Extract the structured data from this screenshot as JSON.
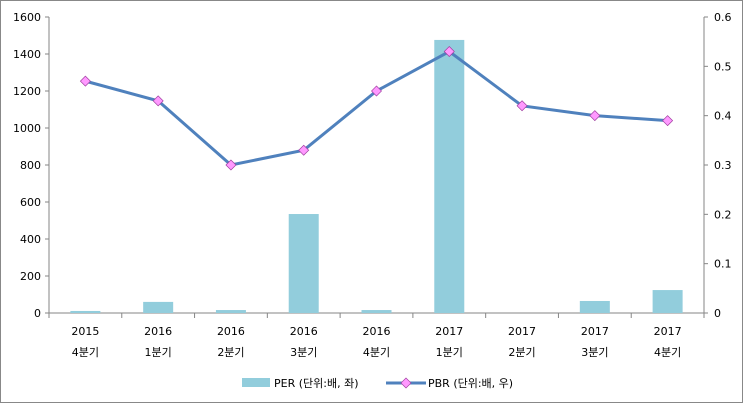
{
  "chart_data": {
    "type": "bar+line",
    "categories": [
      [
        "2015",
        "4분기"
      ],
      [
        "2016",
        "1분기"
      ],
      [
        "2016",
        "2분기"
      ],
      [
        "2016",
        "3분기"
      ],
      [
        "2016",
        "4분기"
      ],
      [
        "2017",
        "1분기"
      ],
      [
        "2017",
        "2분기"
      ],
      [
        "2017",
        "3분기"
      ],
      [
        "2017",
        "4분기"
      ]
    ],
    "series": [
      {
        "name": "PER (단위:배, 좌)",
        "type": "bar",
        "axis": "left",
        "color": "#92CDDC",
        "values": [
          11,
          60,
          16,
          535,
          16,
          1476,
          0,
          65,
          124
        ]
      },
      {
        "name": "PBR (단위:배, 우)",
        "type": "line",
        "axis": "right",
        "color": "#4F81BD",
        "marker_color": "#FF99FF",
        "values": [
          0.47,
          0.43,
          0.3,
          0.33,
          0.45,
          0.53,
          0.42,
          0.4,
          0.39
        ]
      }
    ],
    "left_axis": {
      "ylim": [
        0,
        1600
      ],
      "ticks": [
        "0",
        "200",
        "400",
        "600",
        "800",
        "1000",
        "1200",
        "1400",
        "1600"
      ]
    },
    "right_axis": {
      "ylim": [
        0,
        0.6
      ],
      "ticks": [
        "0",
        "0.1",
        "0.2",
        "0.3",
        "0.4",
        "0.5",
        "0.6"
      ]
    },
    "legend": "bottom"
  }
}
